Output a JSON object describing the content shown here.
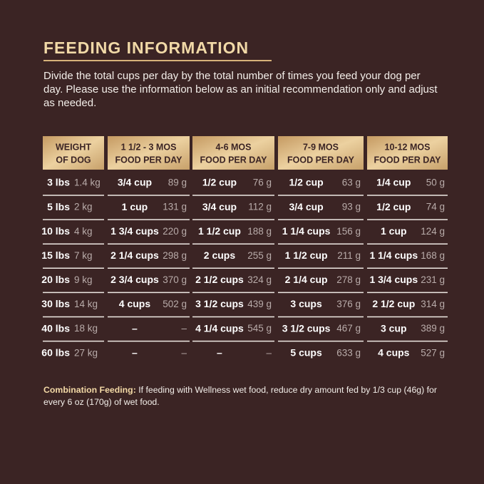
{
  "title": "FEEDING INFORMATION",
  "intro": "Divide the total cups per day by the total number of times you feed your dog per day. Please use the information below as an initial recommendation only and adjust as needed.",
  "table": {
    "headers": [
      [
        "WEIGHT",
        "OF DOG"
      ],
      [
        "1 1/2 - 3 MOS",
        "FOOD PER DAY"
      ],
      [
        "4-6 MOS",
        "FOOD PER DAY"
      ],
      [
        "7-9 MOS",
        "FOOD PER DAY"
      ],
      [
        "10-12 MOS",
        "FOOD PER DAY"
      ]
    ],
    "rows": [
      [
        [
          "3 lbs",
          "1.4 kg"
        ],
        [
          "3/4 cup",
          "89 g"
        ],
        [
          "1/2 cup",
          "76 g"
        ],
        [
          "1/2 cup",
          "63 g"
        ],
        [
          "1/4 cup",
          "50 g"
        ]
      ],
      [
        [
          "5 lbs",
          "2 kg"
        ],
        [
          "1 cup",
          "131 g"
        ],
        [
          "3/4 cup",
          "112 g"
        ],
        [
          "3/4 cup",
          "93 g"
        ],
        [
          "1/2 cup",
          "74 g"
        ]
      ],
      [
        [
          "10 lbs",
          "4 kg"
        ],
        [
          "1 3/4 cups",
          "220 g"
        ],
        [
          "1 1/2 cup",
          "188 g"
        ],
        [
          "1 1/4 cups",
          "156 g"
        ],
        [
          "1 cup",
          "124 g"
        ]
      ],
      [
        [
          "15 lbs",
          "7 kg"
        ],
        [
          "2 1/4 cups",
          "298 g"
        ],
        [
          "2 cups",
          "255 g"
        ],
        [
          "1 1/2 cup",
          "211 g"
        ],
        [
          "1 1/4 cups",
          "168 g"
        ]
      ],
      [
        [
          "20 lbs",
          "9 kg"
        ],
        [
          "2 3/4 cups",
          "370 g"
        ],
        [
          "2 1/2 cups",
          "324 g"
        ],
        [
          "2 1/4 cup",
          "278 g"
        ],
        [
          "1 3/4 cups",
          "231 g"
        ]
      ],
      [
        [
          "30 lbs",
          "14 kg"
        ],
        [
          "4 cups",
          "502 g"
        ],
        [
          "3 1/2 cups",
          "439 g"
        ],
        [
          "3 cups",
          "376 g"
        ],
        [
          "2 1/2 cup",
          "314 g"
        ]
      ],
      [
        [
          "40 lbs",
          "18 kg"
        ],
        [
          "–",
          "–"
        ],
        [
          "4 1/4 cups",
          "545 g"
        ],
        [
          "3 1/2 cups",
          "467 g"
        ],
        [
          "3 cup",
          "389 g"
        ]
      ],
      [
        [
          "60 lbs",
          "27 kg"
        ],
        [
          "–",
          "–"
        ],
        [
          "–",
          "–"
        ],
        [
          "5 cups",
          "633 g"
        ],
        [
          "4 cups",
          "527 g"
        ]
      ]
    ]
  },
  "note": {
    "label": "Combination Feeding:",
    "text": " If feeding with Wellness wet food, reduce dry amount fed by 1/3 cup (46g) for every 6 oz (170g) of wet food."
  }
}
